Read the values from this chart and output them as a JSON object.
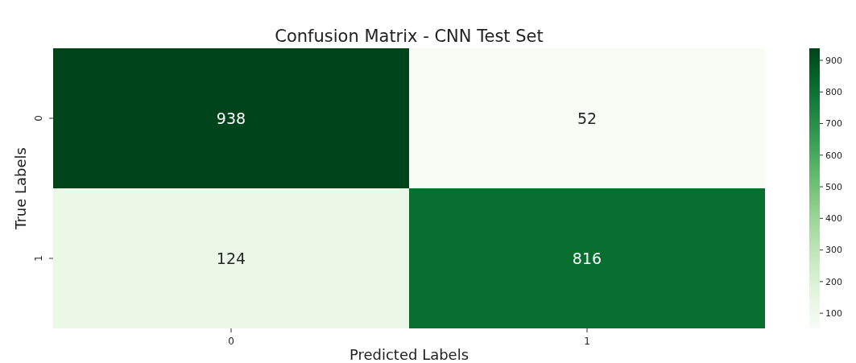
{
  "chart_data": {
    "type": "heatmap",
    "title": "Confusion Matrix - CNN Test Set",
    "xlabel": "Predicted Labels",
    "ylabel": "True Labels",
    "categories": [
      "0",
      "1"
    ],
    "y_categories": [
      "0",
      "1"
    ],
    "cells": [
      [
        938,
        52
      ],
      [
        124,
        816
      ]
    ],
    "data_labels": true,
    "clim": [
      52,
      938
    ],
    "cticks": [
      100,
      200,
      300,
      400,
      500,
      600,
      700,
      800,
      900
    ]
  }
}
